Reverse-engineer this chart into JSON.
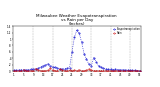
{
  "title": "Milwaukee Weather Evapotranspiration\nvs Rain per Day\n(Inches)",
  "title_fontsize": 3.0,
  "blue_color": "#0000cc",
  "red_color": "#cc0000",
  "background": "#ffffff",
  "ylim": [
    0,
    1.4
  ],
  "yticks": [
    0.0,
    0.2,
    0.4,
    0.6,
    0.8,
    1.0,
    1.2,
    1.4
  ],
  "ytick_labels": [
    "0",
    ".2",
    ".4",
    ".6",
    ".8",
    "1",
    "1.2",
    "1.4"
  ],
  "num_days": 53,
  "evapotranspiration": [
    0.03,
    0.03,
    0.04,
    0.04,
    0.05,
    0.04,
    0.05,
    0.06,
    0.07,
    0.07,
    0.09,
    0.13,
    0.17,
    0.2,
    0.23,
    0.18,
    0.14,
    0.12,
    0.1,
    0.08,
    0.07,
    0.08,
    0.09,
    0.11,
    0.6,
    1.05,
    1.28,
    1.18,
    0.9,
    0.55,
    0.38,
    0.22,
    0.18,
    0.42,
    0.3,
    0.16,
    0.12,
    0.09,
    0.07,
    0.06,
    0.06,
    0.05,
    0.06,
    0.05,
    0.05,
    0.05,
    0.04,
    0.04,
    0.03,
    0.03,
    0.03,
    0.02,
    0.02
  ],
  "rain": [
    0.02,
    0.02,
    0.02,
    0.02,
    0.04,
    0.02,
    0.02,
    0.02,
    0.02,
    0.08,
    0.04,
    0.02,
    0.02,
    0.02,
    0.03,
    0.09,
    0.03,
    0.02,
    0.02,
    0.07,
    0.03,
    0.02,
    0.02,
    0.03,
    0.02,
    0.04,
    0.02,
    0.05,
    0.02,
    0.02,
    0.03,
    0.07,
    0.03,
    0.02,
    0.02,
    0.02,
    0.02,
    0.02,
    0.02,
    0.02,
    0.02,
    0.02,
    0.02,
    0.02,
    0.02,
    0.02,
    0.02,
    0.02,
    0.02,
    0.02,
    0.02,
    0.02,
    0.02
  ],
  "x_tick_positions": [
    0,
    4,
    8,
    12,
    16,
    20,
    24,
    28,
    32,
    36,
    40,
    44,
    48,
    52
  ],
  "x_tick_labels": [
    "1",
    "5",
    "9",
    "13",
    "17",
    "21",
    "25",
    "29",
    "33",
    "37",
    "41",
    "45",
    "49",
    "53"
  ],
  "vline_positions": [
    8,
    16,
    24,
    32,
    40,
    48
  ],
  "legend_et": "Evapotranspiration",
  "legend_rain": "Rain"
}
